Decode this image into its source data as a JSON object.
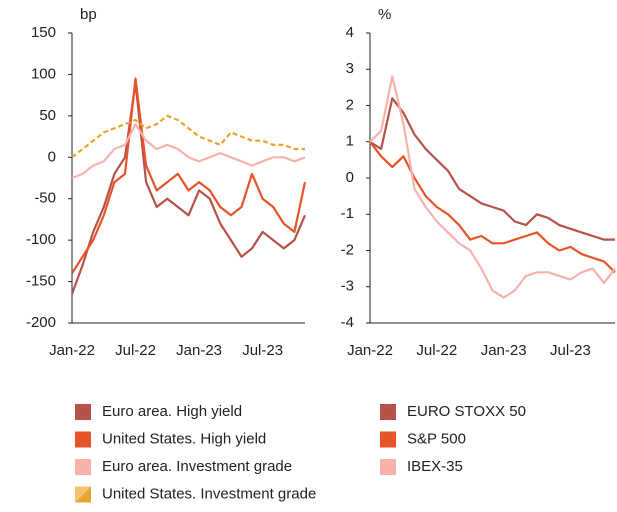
{
  "chart_data": [
    {
      "type": "line",
      "ylabel": "bp",
      "categories": [
        "Jan-22",
        null,
        null,
        null,
        null,
        null,
        "Jul-22",
        null,
        null,
        null,
        null,
        null,
        "Jan-23",
        null,
        null,
        null,
        null,
        null,
        "Jul-23",
        null,
        null,
        null,
        null
      ],
      "ylim": [
        -200,
        150
      ],
      "yticks": [
        -200,
        -150,
        -100,
        -50,
        0,
        50,
        100,
        150
      ],
      "series": [
        {
          "name": "Euro area. High yield",
          "color": "#b5524a",
          "values": [
            -165,
            -130,
            -90,
            -60,
            -20,
            0,
            90,
            -30,
            -60,
            -50,
            -60,
            -70,
            -40,
            -50,
            -80,
            -100,
            -120,
            -110,
            -90,
            -100,
            -110,
            -100,
            -70
          ]
        },
        {
          "name": "United States. High yield",
          "color": "#e8542a",
          "values": [
            -140,
            -120,
            -100,
            -70,
            -30,
            -20,
            95,
            -10,
            -40,
            -30,
            -20,
            -40,
            -30,
            -40,
            -60,
            -70,
            -60,
            -20,
            -50,
            -60,
            -80,
            -90,
            -30
          ]
        },
        {
          "name": "Euro area. Investment grade",
          "color": "#f6b3ad",
          "values": [
            -25,
            -20,
            -10,
            -5,
            10,
            15,
            40,
            20,
            10,
            15,
            10,
            0,
            -5,
            0,
            5,
            0,
            -5,
            -10,
            -5,
            0,
            0,
            -5,
            0
          ]
        },
        {
          "name": "United States. Investment grade",
          "color": "#e8a530",
          "dash": true,
          "values": [
            0,
            10,
            20,
            30,
            35,
            40,
            45,
            35,
            40,
            50,
            45,
            35,
            25,
            20,
            15,
            30,
            25,
            20,
            20,
            15,
            15,
            10,
            10
          ]
        }
      ]
    },
    {
      "type": "line",
      "ylabel": "%",
      "categories": [
        "Jan-22",
        null,
        null,
        null,
        null,
        null,
        "Jul-22",
        null,
        null,
        null,
        null,
        null,
        "Jan-23",
        null,
        null,
        null,
        null,
        null,
        "Jul-23",
        null,
        null,
        null,
        null
      ],
      "ylim": [
        -4,
        4
      ],
      "yticks": [
        -4,
        -3,
        -2,
        -1,
        0,
        1,
        2,
        3,
        4
      ],
      "series": [
        {
          "name": "EURO STOXX 50",
          "color": "#b5524a",
          "values": [
            1,
            0.8,
            2.2,
            1.8,
            1.2,
            0.8,
            0.5,
            0.2,
            -0.3,
            -0.5,
            -0.7,
            -0.8,
            -0.9,
            -1.2,
            -1.3,
            -1.0,
            -1.1,
            -1.3,
            -1.4,
            -1.5,
            -1.6,
            -1.7,
            -1.7
          ]
        },
        {
          "name": "S&P 500",
          "color": "#e8542a",
          "values": [
            1,
            0.6,
            0.3,
            0.6,
            0,
            -0.5,
            -0.8,
            -1.0,
            -1.3,
            -1.7,
            -1.6,
            -1.8,
            -1.8,
            -1.7,
            -1.6,
            -1.5,
            -1.8,
            -2.0,
            -1.9,
            -2.1,
            -2.2,
            -2.3,
            -2.6
          ]
        },
        {
          "name": "IBEX-35",
          "color": "#f6b3ad",
          "values": [
            1,
            1.3,
            2.8,
            1.5,
            -0.3,
            -0.8,
            -1.2,
            -1.5,
            -1.8,
            -2.0,
            -2.5,
            -3.1,
            -3.3,
            -3.1,
            -2.7,
            -2.6,
            -2.6,
            -2.7,
            -2.8,
            -2.6,
            -2.5,
            -2.9,
            -2.5
          ]
        }
      ]
    }
  ]
}
